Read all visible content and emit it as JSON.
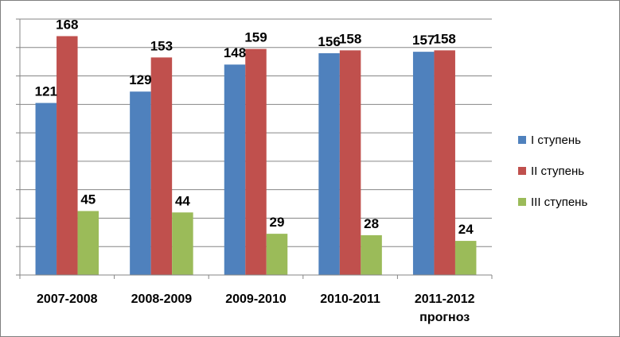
{
  "chart_data": {
    "type": "bar",
    "categories": [
      "2007-2008",
      "2008-2009",
      "2009-2010",
      "2010-2011",
      "2011-2012"
    ],
    "category_sublabels": [
      "",
      "",
      "",
      "",
      "прогноз"
    ],
    "series": [
      {
        "name": "I ступень",
        "color": "#4F81BD",
        "values": [
          121,
          129,
          148,
          156,
          157
        ]
      },
      {
        "name": "II ступень",
        "color": "#C0504D",
        "values": [
          168,
          153,
          159,
          158,
          158
        ]
      },
      {
        "name": "III ступень",
        "color": "#9BBB59",
        "values": [
          45,
          44,
          29,
          28,
          24
        ]
      }
    ],
    "ylim": [
      0,
      180
    ],
    "y_gridline_step": 20,
    "grid": true,
    "legend_position": "right",
    "y_tick_labels_shown": false
  }
}
